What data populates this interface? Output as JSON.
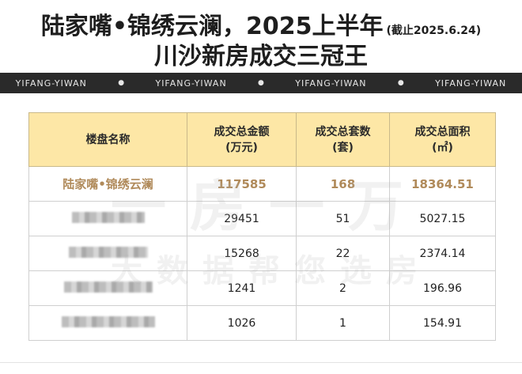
{
  "title": {
    "line1": "陆家嘴•锦绣云澜，2025上半年",
    "date_note": "(截止2025.6.24)",
    "line2": "川沙新房成交三冠王"
  },
  "band": {
    "watermarks": [
      "YIFANG-YIWAN",
      "YIFANG-YIWAN",
      "YIFANG-YIWAN",
      "YIFANG-YIWAN"
    ]
  },
  "table": {
    "headers": {
      "name": "楼盘名称",
      "amount_l1": "成交总金额",
      "amount_l2": "(万元)",
      "units_l1": "成交总套数",
      "units_l2": "(套)",
      "area_l1": "成交总面积",
      "area_l2": "(㎡)"
    },
    "rows": [
      {
        "name": "陆家嘴•锦绣云澜",
        "amount": "117585",
        "units": "168",
        "area": "18364.51"
      },
      {
        "name": "",
        "amount": "29451",
        "units": "51",
        "area": "5027.15"
      },
      {
        "name": "",
        "amount": "15268",
        "units": "22",
        "area": "2374.14"
      },
      {
        "name": "",
        "amount": "1241",
        "units": "2",
        "area": "196.96"
      },
      {
        "name": "",
        "amount": "1026",
        "units": "1",
        "area": "154.91"
      }
    ]
  },
  "watermark": {
    "line1": "一房一万",
    "line2": "大数据帮您选房"
  }
}
